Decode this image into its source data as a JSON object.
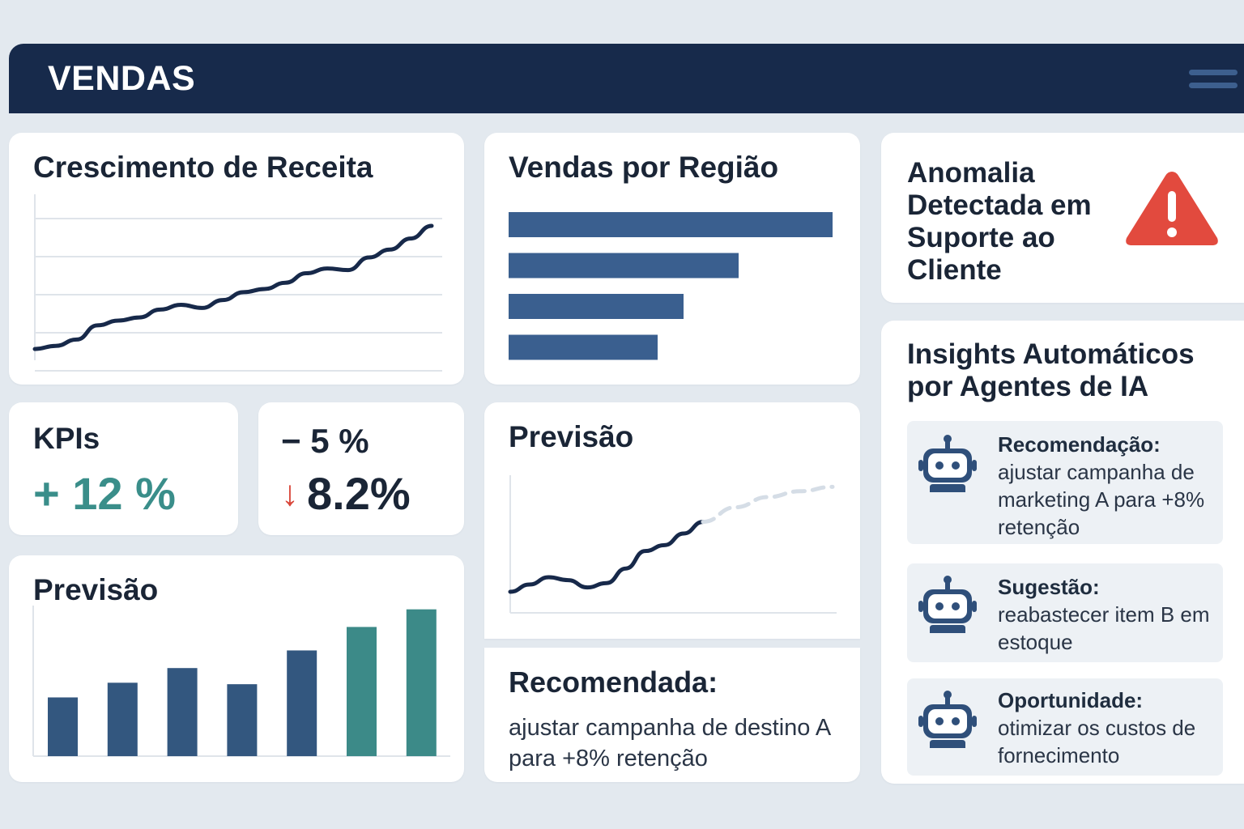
{
  "header": {
    "title": "VENDAS",
    "menu_icon": "hamburger-menu-icon"
  },
  "revenue": {
    "title": "Crescimento de Receita",
    "chart_data": {
      "type": "line",
      "title": "Crescimento de Receita",
      "x": [
        1,
        2,
        3,
        4,
        5,
        6,
        7,
        8,
        9,
        10,
        11,
        12,
        13,
        14,
        15,
        16,
        17,
        18,
        19,
        20
      ],
      "values": [
        2,
        4,
        8,
        17,
        20,
        22,
        27,
        30,
        28,
        33,
        38,
        40,
        44,
        50,
        53,
        52,
        60,
        65,
        72,
        80
      ],
      "ylim": [
        0,
        100
      ],
      "grid": true
    }
  },
  "region": {
    "title": "Vendas por Região",
    "chart_data": {
      "type": "bar",
      "orientation": "horizontal",
      "title": "Vendas por Região",
      "values": [
        100,
        71,
        54,
        46
      ],
      "xlim": [
        0,
        100
      ],
      "color": "#3a5f8f"
    }
  },
  "kpi": {
    "label": "KPIs",
    "growth": "+ 12 %",
    "minus_value": "− 5 %",
    "down_value": "8.2%",
    "down_arrow": "↓",
    "colors": {
      "positive": "#3a8e8a",
      "negative": "#d9473b"
    }
  },
  "forecast_bar": {
    "title": "Previsão",
    "chart_data": {
      "type": "bar",
      "title": "Previsão",
      "values": [
        40,
        50,
        60,
        49,
        72,
        88,
        100
      ],
      "ylim": [
        0,
        110
      ],
      "colors": [
        "#33577f",
        "#33577f",
        "#33577f",
        "#33577f",
        "#33577f",
        "#3c8a88",
        "#3c8a88"
      ]
    }
  },
  "forecast_line": {
    "title": "Previsão",
    "chart_data": {
      "type": "line",
      "title": "Previsão",
      "series": [
        {
          "values": [
            10,
            15,
            20,
            18,
            13,
            16,
            26,
            38,
            42,
            50,
            58
          ],
          "style": "solid"
        },
        {
          "values": [
            58,
            68,
            75,
            79,
            82
          ],
          "style": "dashed"
        }
      ],
      "ylim": [
        0,
        100
      ]
    }
  },
  "recommendation": {
    "title": "Recomendada:",
    "body": "ajustar campanha de destino A para +8% retenção"
  },
  "anomaly": {
    "text": "Anomalia Detectada em Suporte ao Cliente",
    "icon": "warning-icon",
    "color": "#e24a3e"
  },
  "insights": {
    "title": "Insights Automáticos por Agentes de IA",
    "items": [
      {
        "heading": "Recomendação:",
        "body": "ajustar campanha de marketing A para +8% retenção",
        "icon": "robot-icon"
      },
      {
        "heading": "Sugestão:",
        "body": "reabastecer item B em estoque",
        "icon": "robot-icon"
      },
      {
        "heading": "Oportunidade:",
        "body": "otimizar os custos de fornecimento",
        "icon": "robot-icon"
      }
    ]
  }
}
